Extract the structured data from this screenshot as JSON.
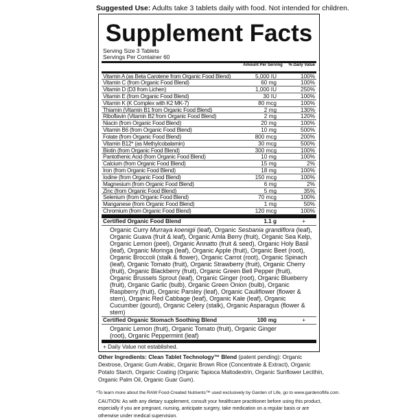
{
  "suggested_use": {
    "label": "Suggested Use:",
    "text": " Adults take 3 tablets daily with food. Not intended for children."
  },
  "panel": {
    "title": "Supplement Facts",
    "serving_size": "Serving Size 3 Tablets",
    "servings_per_container": "Servings Per Container 60",
    "col_amount": "Amount Per Serving",
    "col_dv": "% Daily Value",
    "rows": [
      {
        "name": "Vitamin A (as Beta Carotene from Organic Food Blend)",
        "amount": "5,000 IU",
        "dv": "100%"
      },
      {
        "name": "Vitamin C (from Organic Food Blend)",
        "amount": "60 mg",
        "dv": "100%"
      },
      {
        "name": "Vitamin D (D3 from Lichen)",
        "amount": "1,000 IU",
        "dv": "250%"
      },
      {
        "name": "Vitamin E (from Organic Food Blend)",
        "amount": "30 IU",
        "dv": "100%"
      },
      {
        "name": "Vitamin K (K Complex with K2 MK-7)",
        "amount": "80 mcg",
        "dv": "100%"
      },
      {
        "name": "Thiamin (Vitamin B1 from Organic Food Blend)",
        "amount": "2 mg",
        "dv": "130%"
      },
      {
        "name": "Riboflavin (Vitamin B2 from Organic Food Blend)",
        "amount": "2 mg",
        "dv": "120%"
      },
      {
        "name": "Niacin (from Organic Food Blend)",
        "amount": "20 mg",
        "dv": "100%"
      },
      {
        "name": "Vitamin B6 (from Organic Food Blend)",
        "amount": "10 mg",
        "dv": "500%"
      },
      {
        "name": "Folate (from Organic Food Blend)",
        "amount": "800 mcg",
        "dv": "200%"
      },
      {
        "name": "Vitamin B12* (as Methylcobalamin)",
        "amount": "30 mcg",
        "dv": "500%"
      },
      {
        "name": "Biotin (from Organic Food Blend)",
        "amount": "300 mcg",
        "dv": "100%"
      },
      {
        "name": "Pantothenic Acid (from Organic Food Blend)",
        "amount": "10 mg",
        "dv": "100%"
      },
      {
        "name": "Calcium (from Organic Food Blend)",
        "amount": "15 mg",
        "dv": "2%"
      },
      {
        "name": "Iron (from Organic Food Blend)",
        "amount": "18 mg",
        "dv": "100%"
      },
      {
        "name": "Iodine (from Organic Food Blend)",
        "amount": "150 mcg",
        "dv": "100%"
      },
      {
        "name": "Magnesium (from Organic Food Blend)",
        "amount": "6 mg",
        "dv": "2%"
      },
      {
        "name": "Zinc (from Organic Food Blend)",
        "amount": "5 mg",
        "dv": "35%"
      },
      {
        "name": "Selenium (from Organic Food Blend)",
        "amount": "70 mcg",
        "dv": "100%"
      },
      {
        "name": "Manganese (from Organic Food Blend)",
        "amount": "1 mg",
        "dv": "50%"
      },
      {
        "name": "Chromium (from Organic Food Blend)",
        "amount": "120 mcg",
        "dv": "100%"
      }
    ],
    "food_blend": {
      "name": "Certified Organic Food Blend",
      "amount": "1.1 g",
      "dv": "+",
      "ingredients": "Organic Curry Murraya koenigii (leaf), Organic Sesbania grandiflora (leaf), Organic Guava (fruit & leaf), Organic Amla Berry (fruit), Organic Sea Kelp, Organic Lemon (peel), Organic Annatto (fruit & seed), Organic Holy Basil (leaf), Organic Moringa (leaf), Organic Apple (fruit), Organic Beet (root), Organic Broccoli (stalk & flower), Organic Carrot (root), Organic Spinach (leaf), Organic Tomato (fruit), Organic Strawberry (fruit), Organic Cherry (fruit), Organic Blackberry (fruit), Organic Green Bell Pepper (fruit), Organic Brussels Sprout (leaf), Organic Ginger (root), Organic Blueberry (fruit), Organic Garlic (bulb), Organic Green Onion (bulb), Organic Raspberry (fruit), Organic Parsley (leaf), Organic Cauliflower (flower & stem), Organic Red Cabbage (leaf), Organic Kale (leaf), Organic Cucumber (gourd), Organic Celery (stalk), Organic Asparagus (flower & stem)"
    },
    "stomach_blend": {
      "name": "Certified Organic Stomach Soothing Blend",
      "amount": "100 mg",
      "dv": "+",
      "ingredients": "Organic Lemon (fruit), Organic Tomato (fruit), Organic Ginger (root), Organic Peppermint (leaf)"
    },
    "footnote": "+ Daily Value not established."
  },
  "other_ingredients": {
    "label": "Other Ingredients: Clean Tablet Technology™ Blend",
    "text": " (patent pending): Organic Dextrose, Organic Gum Arabic, Organic Brown Rice (Concentrate & Extract), Organic Potato Starch, Organic Coating (Organic Tapioca Maltodextrin, Organic Sunflower Lecithin, Organic Palm Oil, Organic Guar Gum)."
  },
  "learn_more": "*To learn more about the RAW Food-Created Nutrients™ used exclusively by Garden of Life, go to www.gardenoflife.com.",
  "caution": "CAUTION: As with any dietary supplement, consult your healthcare practitioner before using this product, especially if you are pregnant, nursing, anticipate surgery, take medication on a regular basis or are otherwise under medical supervision."
}
